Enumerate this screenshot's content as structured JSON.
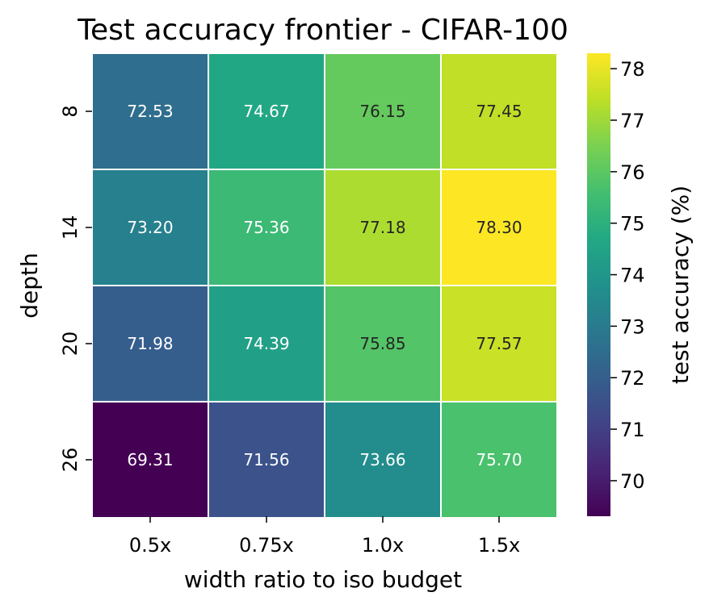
{
  "chart_data": {
    "type": "heatmap",
    "title": "Test accuracy frontier - CIFAR-100",
    "xlabel": "width ratio to iso budget",
    "ylabel": "depth",
    "x_categories": [
      "0.5x",
      "0.75x",
      "1.0x",
      "1.5x"
    ],
    "y_categories": [
      "8",
      "14",
      "20",
      "26"
    ],
    "values": [
      [
        72.53,
        74.67,
        76.15,
        77.45
      ],
      [
        73.2,
        75.36,
        77.18,
        78.3
      ],
      [
        71.98,
        74.39,
        75.85,
        77.57
      ],
      [
        69.31,
        71.56,
        73.66,
        75.7
      ]
    ],
    "annotations": [
      [
        "72.53",
        "74.67",
        "76.15",
        "77.45"
      ],
      [
        "73.20",
        "75.36",
        "77.18",
        "78.30"
      ],
      [
        "71.98",
        "74.39",
        "75.85",
        "77.57"
      ],
      [
        "69.31",
        "71.56",
        "73.66",
        "75.70"
      ]
    ],
    "colorscale": "viridis",
    "colorbar": {
      "label": "test accuracy (%)",
      "range": [
        69.31,
        78.3
      ],
      "ticks": [
        "70",
        "71",
        "72",
        "73",
        "74",
        "75",
        "76",
        "77",
        "78"
      ]
    },
    "grid": false
  }
}
